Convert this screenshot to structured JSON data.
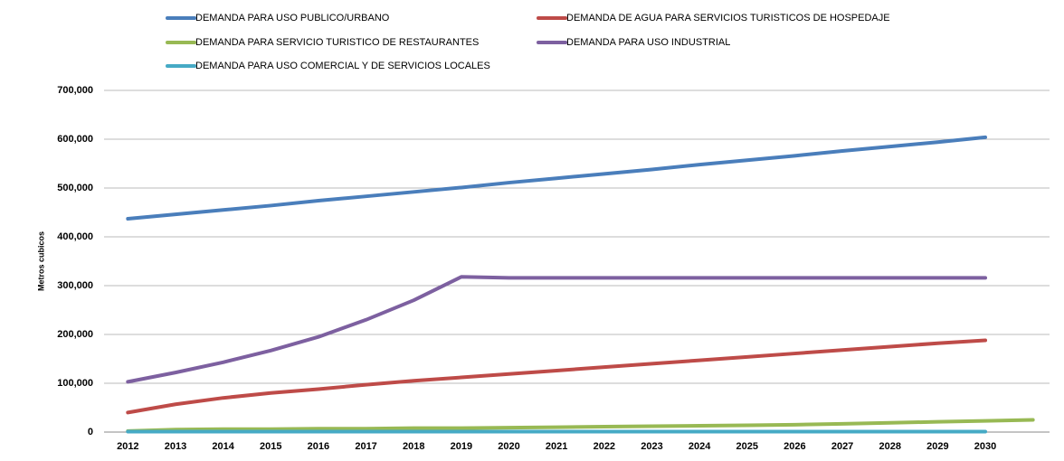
{
  "chart_data": {
    "type": "line",
    "y_label": "Metros cubicos",
    "categories": [
      "2012",
      "2013",
      "2014",
      "2015",
      "2016",
      "2017",
      "2018",
      "2019",
      "2020",
      "2021",
      "2022",
      "2023",
      "2024",
      "2025",
      "2026",
      "2027",
      "2028",
      "2029",
      "2030",
      null
    ],
    "series": [
      {
        "name": "DEMANDA PARA USO PUBLICO/URBANO",
        "color": "#4a7ebb",
        "values": [
          437000,
          446000,
          455000,
          464000,
          474000,
          483000,
          492000,
          501000,
          511000,
          520000,
          529000,
          538000,
          548000,
          557000,
          566000,
          576000,
          585000,
          594000,
          604000,
          null
        ]
      },
      {
        "name": "DEMANDA DE AGUA PARA SERVICIOS TURISTICOS DE HOSPEDAJE",
        "color": "#be4b48",
        "values": [
          40000,
          57000,
          70000,
          80000,
          88000,
          97000,
          105000,
          112000,
          119000,
          126000,
          133000,
          140000,
          147000,
          154000,
          161000,
          168000,
          175000,
          182000,
          188000,
          null
        ]
      },
      {
        "name": "DEMANDA PARA SERVICIO TURISTICO DE RESTAURANTES",
        "color": "#98b954",
        "values": [
          2000,
          5000,
          6000,
          6000,
          7000,
          7000,
          8000,
          8000,
          9000,
          10000,
          11000,
          12000,
          13000,
          14000,
          15000,
          17000,
          19000,
          21000,
          23000,
          25000
        ]
      },
      {
        "name": "DEMANDA PARA USO INDUSTRIAL",
        "color": "#7d60a0",
        "values": [
          103000,
          122000,
          143000,
          167000,
          195000,
          230000,
          270000,
          318000,
          316000,
          316000,
          316000,
          316000,
          316000,
          316000,
          316000,
          316000,
          316000,
          316000,
          316000,
          null
        ]
      },
      {
        "name": "DEMANDA PARA USO COMERCIAL Y DE SERVICIOS LOCALES",
        "color": "#46aac5",
        "values": [
          1000,
          1000,
          1000,
          1000,
          1000,
          1000,
          1000,
          1000,
          1000,
          1000,
          1000,
          1000,
          1000,
          1000,
          1000,
          1000,
          1000,
          1000,
          1000,
          null
        ]
      }
    ],
    "ylim": [
      0,
      700000
    ],
    "yticks": [
      0,
      {
        "value": 100000,
        "label": "100,000"
      },
      {
        "value": 200000,
        "label": "200,000"
      },
      {
        "value": 300000,
        "label": "300,000"
      },
      {
        "value": 400000,
        "label": "400,000"
      },
      {
        "value": 500000,
        "label": "500,000"
      },
      {
        "value": 600000,
        "label": "600,000"
      },
      {
        "value": 700000,
        "label": "700,000"
      }
    ],
    "grid": true
  }
}
